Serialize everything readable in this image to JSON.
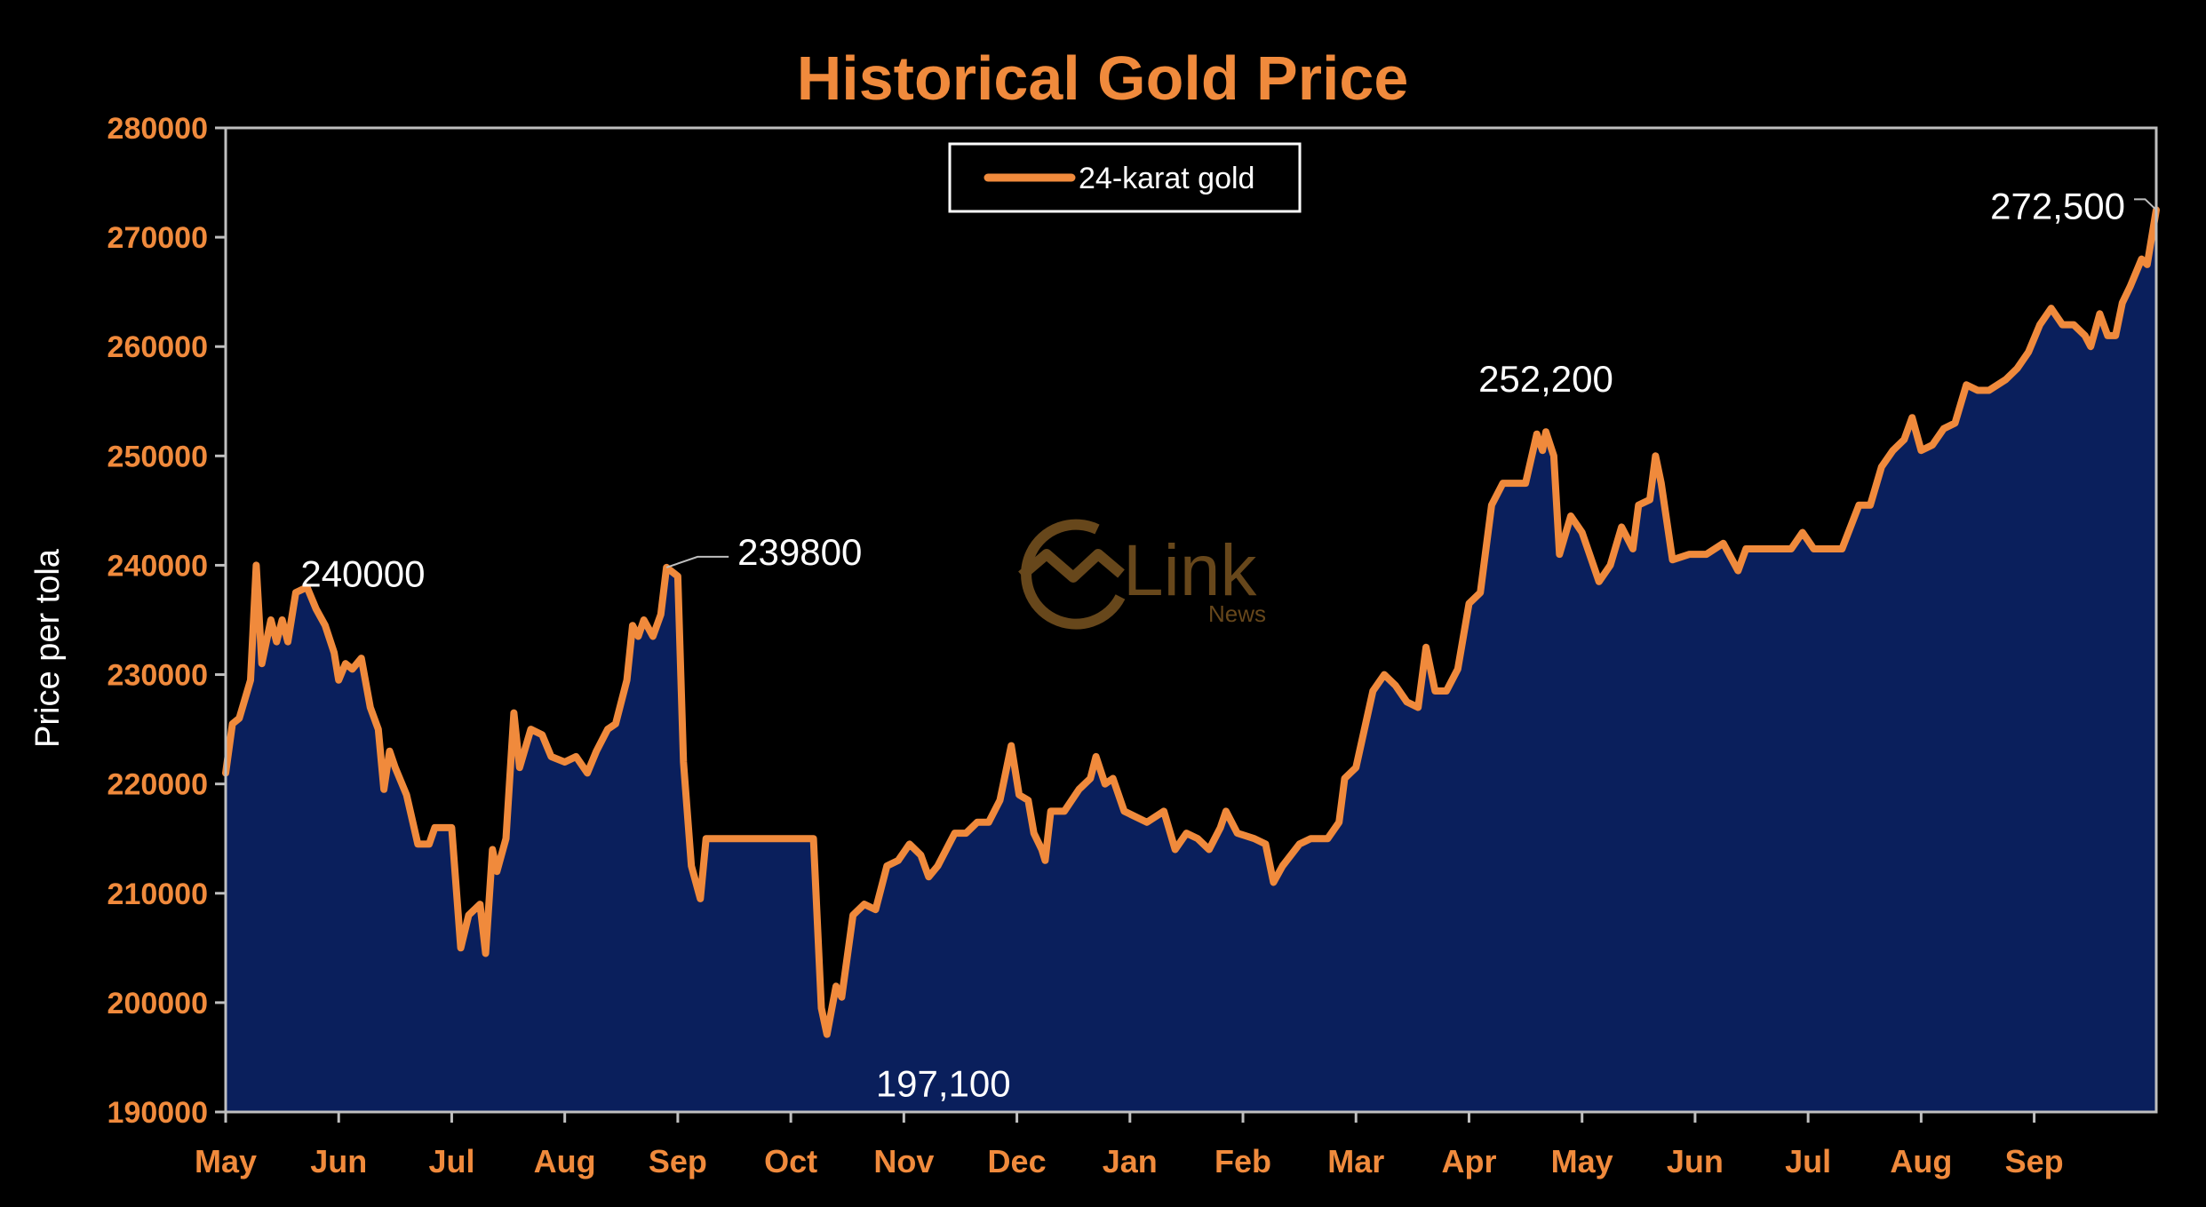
{
  "chart_data": {
    "type": "area",
    "title": "Historical Gold Price",
    "xlabel": "",
    "ylabel": "Price per tola",
    "ylim": [
      190000,
      280000
    ],
    "yticks": [
      "280000",
      "270000",
      "260000",
      "250000",
      "240000",
      "230000",
      "220000",
      "210000",
      "200000",
      "190000"
    ],
    "x_tick_labels": [
      "May",
      "Jun",
      "Jul",
      "Aug",
      "Sep",
      "Oct",
      "Nov",
      "Dec",
      "Jan",
      "Feb",
      "Mar",
      "Apr",
      "May",
      "Jun",
      "Jul",
      "Aug",
      "Sep"
    ],
    "legend_position": "top-center",
    "grid": false,
    "colors": {
      "line": "#f08a3c",
      "fill": "#0a1f5c",
      "axis_text": "#f08a3c",
      "background": "#000000",
      "plot_border": "#bfbfbf"
    },
    "series": [
      {
        "name": "24-karat gold",
        "points": [
          [
            0.0,
            221000
          ],
          [
            0.06,
            225500
          ],
          [
            0.12,
            226000
          ],
          [
            0.22,
            229500
          ],
          [
            0.27,
            240000
          ],
          [
            0.32,
            231000
          ],
          [
            0.4,
            235000
          ],
          [
            0.45,
            233000
          ],
          [
            0.5,
            235000
          ],
          [
            0.55,
            233000
          ],
          [
            0.62,
            237500
          ],
          [
            0.72,
            238000
          ],
          [
            0.8,
            236000
          ],
          [
            0.88,
            234500
          ],
          [
            0.96,
            232000
          ],
          [
            1.0,
            229500
          ],
          [
            1.06,
            231000
          ],
          [
            1.12,
            230500
          ],
          [
            1.2,
            231500
          ],
          [
            1.28,
            227000
          ],
          [
            1.35,
            225000
          ],
          [
            1.4,
            219500
          ],
          [
            1.45,
            223000
          ],
          [
            1.5,
            221500
          ],
          [
            1.6,
            219000
          ],
          [
            1.7,
            214500
          ],
          [
            1.8,
            214500
          ],
          [
            1.85,
            216000
          ],
          [
            2.0,
            216000
          ],
          [
            2.08,
            205000
          ],
          [
            2.15,
            208000
          ],
          [
            2.25,
            209000
          ],
          [
            2.3,
            204500
          ],
          [
            2.36,
            214000
          ],
          [
            2.4,
            212000
          ],
          [
            2.48,
            215000
          ],
          [
            2.55,
            226500
          ],
          [
            2.6,
            221500
          ],
          [
            2.7,
            225000
          ],
          [
            2.8,
            224500
          ],
          [
            2.88,
            222500
          ],
          [
            3.0,
            222000
          ],
          [
            3.1,
            222500
          ],
          [
            3.2,
            221000
          ],
          [
            3.28,
            223000
          ],
          [
            3.38,
            225000
          ],
          [
            3.45,
            225500
          ],
          [
            3.55,
            229500
          ],
          [
            3.6,
            234500
          ],
          [
            3.65,
            233500
          ],
          [
            3.7,
            235000
          ],
          [
            3.78,
            233500
          ],
          [
            3.85,
            235500
          ],
          [
            3.9,
            239800
          ],
          [
            4.0,
            239000
          ],
          [
            4.05,
            222000
          ],
          [
            4.12,
            212500
          ],
          [
            4.2,
            209500
          ],
          [
            4.25,
            215000
          ],
          [
            5.2,
            215000
          ],
          [
            5.27,
            199500
          ],
          [
            5.32,
            197100
          ],
          [
            5.4,
            201500
          ],
          [
            5.45,
            200500
          ],
          [
            5.55,
            208000
          ],
          [
            5.65,
            209000
          ],
          [
            5.75,
            208500
          ],
          [
            5.85,
            212500
          ],
          [
            5.95,
            213000
          ],
          [
            6.05,
            214500
          ],
          [
            6.15,
            213500
          ],
          [
            6.22,
            211500
          ],
          [
            6.3,
            212500
          ],
          [
            6.45,
            215500
          ],
          [
            6.55,
            215500
          ],
          [
            6.65,
            216500
          ],
          [
            6.75,
            216500
          ],
          [
            6.85,
            218500
          ],
          [
            6.95,
            223500
          ],
          [
            7.02,
            219000
          ],
          [
            7.1,
            218500
          ],
          [
            7.15,
            215500
          ],
          [
            7.22,
            214000
          ],
          [
            7.25,
            213000
          ],
          [
            7.3,
            217500
          ],
          [
            7.42,
            217500
          ],
          [
            7.55,
            219500
          ],
          [
            7.65,
            220500
          ],
          [
            7.7,
            222500
          ],
          [
            7.78,
            220000
          ],
          [
            7.85,
            220500
          ],
          [
            7.95,
            217500
          ],
          [
            8.05,
            217000
          ],
          [
            8.15,
            216500
          ],
          [
            8.3,
            217500
          ],
          [
            8.4,
            214000
          ],
          [
            8.5,
            215500
          ],
          [
            8.6,
            215000
          ],
          [
            8.7,
            214000
          ],
          [
            8.8,
            216000
          ],
          [
            8.85,
            217500
          ],
          [
            8.95,
            215500
          ],
          [
            9.1,
            215000
          ],
          [
            9.2,
            214500
          ],
          [
            9.27,
            211000
          ],
          [
            9.35,
            212500
          ],
          [
            9.5,
            214500
          ],
          [
            9.6,
            215000
          ],
          [
            9.75,
            215000
          ],
          [
            9.85,
            216500
          ],
          [
            9.9,
            220500
          ],
          [
            10.0,
            221500
          ],
          [
            10.15,
            228500
          ],
          [
            10.25,
            230000
          ],
          [
            10.35,
            229000
          ],
          [
            10.45,
            227500
          ],
          [
            10.55,
            227000
          ],
          [
            10.62,
            232500
          ],
          [
            10.7,
            228500
          ],
          [
            10.8,
            228500
          ],
          [
            10.9,
            230500
          ],
          [
            11.0,
            236500
          ],
          [
            11.1,
            237500
          ],
          [
            11.2,
            245500
          ],
          [
            11.3,
            247500
          ],
          [
            11.5,
            247500
          ],
          [
            11.6,
            252000
          ],
          [
            11.65,
            250500
          ],
          [
            11.68,
            252200
          ],
          [
            11.75,
            250000
          ],
          [
            11.8,
            241000
          ],
          [
            11.9,
            244500
          ],
          [
            12.0,
            243000
          ],
          [
            12.05,
            241500
          ],
          [
            12.15,
            238500
          ],
          [
            12.25,
            240000
          ],
          [
            12.35,
            243500
          ],
          [
            12.45,
            241500
          ],
          [
            12.5,
            245500
          ],
          [
            12.6,
            246000
          ],
          [
            12.65,
            250000
          ],
          [
            12.7,
            247500
          ],
          [
            12.8,
            240500
          ],
          [
            12.95,
            241000
          ],
          [
            13.1,
            241000
          ],
          [
            13.25,
            242000
          ],
          [
            13.38,
            239500
          ],
          [
            13.45,
            241500
          ],
          [
            13.6,
            241500
          ],
          [
            13.75,
            241500
          ],
          [
            13.85,
            241500
          ],
          [
            13.95,
            243000
          ],
          [
            14.05,
            241500
          ],
          [
            14.15,
            241500
          ],
          [
            14.3,
            241500
          ],
          [
            14.45,
            245500
          ],
          [
            14.55,
            245500
          ],
          [
            14.65,
            249000
          ],
          [
            14.75,
            250500
          ],
          [
            14.85,
            251500
          ],
          [
            14.92,
            253500
          ],
          [
            15.0,
            250500
          ],
          [
            15.1,
            251000
          ],
          [
            15.2,
            252500
          ],
          [
            15.3,
            253000
          ],
          [
            15.4,
            256500
          ],
          [
            15.5,
            256000
          ],
          [
            15.6,
            256000
          ],
          [
            15.75,
            257000
          ],
          [
            15.85,
            258000
          ],
          [
            15.95,
            259500
          ],
          [
            16.05,
            262000
          ],
          [
            16.15,
            263500
          ],
          [
            16.25,
            262000
          ],
          [
            16.35,
            262000
          ],
          [
            16.45,
            261000
          ],
          [
            16.5,
            260000
          ],
          [
            16.58,
            263000
          ],
          [
            16.65,
            261000
          ],
          [
            16.72,
            261000
          ],
          [
            16.78,
            264000
          ],
          [
            16.85,
            265500
          ],
          [
            16.95,
            268000
          ],
          [
            17.0,
            267500
          ],
          [
            17.08,
            272500
          ]
        ]
      }
    ],
    "annotations": [
      {
        "text": "240000",
        "x": 0.27,
        "y": 240000
      },
      {
        "text": "239800",
        "x": 3.9,
        "y": 239800
      },
      {
        "text": "197,100",
        "x": 5.32,
        "y": 197100
      },
      {
        "text": "252,200",
        "x": 11.68,
        "y": 252200
      },
      {
        "text": "272,500",
        "x": 17.08,
        "y": 272500
      }
    ]
  },
  "logo": {
    "brand": "Link",
    "sub": "News"
  }
}
